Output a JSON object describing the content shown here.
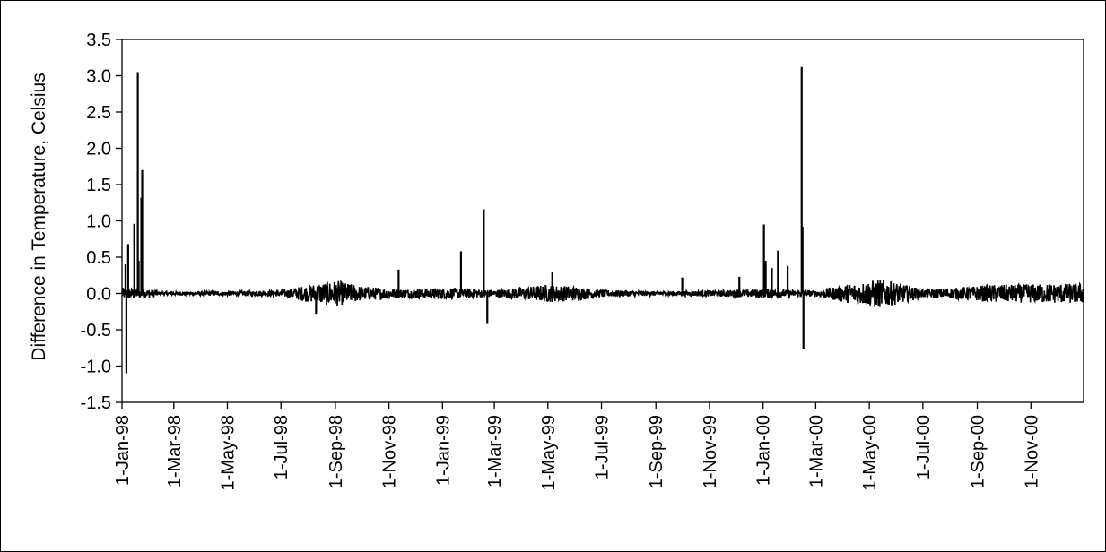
{
  "chart_data": {
    "type": "line",
    "title": "",
    "xlabel": "",
    "ylabel": "Difference in Temperature, Celsius",
    "ylim": [
      -1.5,
      3.5
    ],
    "y_ticks": [
      -1.5,
      -1.0,
      -0.5,
      0.0,
      0.5,
      1.0,
      1.5,
      2.0,
      2.5,
      3.0,
      3.5
    ],
    "y_tick_labels": [
      "-1.5",
      "-1.0",
      "-0.5",
      "0.0",
      "0.5",
      "1.0",
      "1.5",
      "2.0",
      "2.5",
      "3.0",
      "3.5"
    ],
    "xlim": [
      "1998-01-01",
      "2000-12-31"
    ],
    "x_ticks": [
      "1998-01-01",
      "1998-03-01",
      "1998-05-01",
      "1998-07-01",
      "1998-09-01",
      "1998-11-01",
      "1999-01-01",
      "1999-03-01",
      "1999-05-01",
      "1999-07-01",
      "1999-09-01",
      "1999-11-01",
      "2000-01-01",
      "2000-03-01",
      "2000-05-01",
      "2000-07-01",
      "2000-09-01",
      "2000-11-01"
    ],
    "x_tick_labels": [
      "1-Jan-98",
      "1-Mar-98",
      "1-May-98",
      "1-Jul-98",
      "1-Sep-98",
      "1-Nov-98",
      "1-Jan-99",
      "1-Mar-99",
      "1-May-99",
      "1-Jul-99",
      "1-Sep-99",
      "1-Nov-99",
      "1-Jan-00",
      "1-Mar-00",
      "1-May-00",
      "1-Jul-00",
      "1-Sep-00",
      "1-Nov-00"
    ],
    "grid": false,
    "legend": "none",
    "line_color": "#000000",
    "noise_band": [
      {
        "x": "1998-01-01",
        "amp": 0.08
      },
      {
        "x": "1998-02-10",
        "amp": 0.05
      },
      {
        "x": "1998-02-11",
        "amp": 0.02
      },
      {
        "x": "1998-04-20",
        "amp": 0.03
      },
      {
        "x": "1998-07-01",
        "amp": 0.04
      },
      {
        "x": "1998-08-01",
        "amp": 0.12
      },
      {
        "x": "1998-09-01",
        "amp": 0.18
      },
      {
        "x": "1998-10-01",
        "amp": 0.1
      },
      {
        "x": "1998-11-15",
        "amp": 0.06
      },
      {
        "x": "1999-01-01",
        "amp": 0.08
      },
      {
        "x": "1999-03-01",
        "amp": 0.05
      },
      {
        "x": "1999-05-01",
        "amp": 0.12
      },
      {
        "x": "1999-06-01",
        "amp": 0.1
      },
      {
        "x": "1999-07-01",
        "amp": 0.05
      },
      {
        "x": "1999-09-01",
        "amp": 0.03
      },
      {
        "x": "1999-11-01",
        "amp": 0.04
      },
      {
        "x": "2000-01-01",
        "amp": 0.06
      },
      {
        "x": "2000-03-01",
        "amp": 0.04
      },
      {
        "x": "2000-04-01",
        "amp": 0.12
      },
      {
        "x": "2000-05-15",
        "amp": 0.2
      },
      {
        "x": "2000-07-01",
        "amp": 0.06
      },
      {
        "x": "2000-08-01",
        "amp": 0.07
      },
      {
        "x": "2000-09-15",
        "amp": 0.12
      },
      {
        "x": "2000-12-31",
        "amp": 0.14
      }
    ],
    "spikes": [
      {
        "x": "1998-01-05",
        "y": 0.4
      },
      {
        "x": "1998-01-06",
        "y": -1.1
      },
      {
        "x": "1998-01-08",
        "y": 0.68
      },
      {
        "x": "1998-01-15",
        "y": 0.96
      },
      {
        "x": "1998-01-19",
        "y": 3.05
      },
      {
        "x": "1998-01-20",
        "y": 0.45
      },
      {
        "x": "1998-01-23",
        "y": 1.32
      },
      {
        "x": "1998-01-24",
        "y": 1.7
      },
      {
        "x": "1998-08-10",
        "y": -0.28
      },
      {
        "x": "1998-11-12",
        "y": 0.33
      },
      {
        "x": "1999-01-22",
        "y": 0.58
      },
      {
        "x": "1999-02-17",
        "y": 1.16
      },
      {
        "x": "1999-02-21",
        "y": -0.42
      },
      {
        "x": "1999-05-06",
        "y": 0.3
      },
      {
        "x": "1999-10-01",
        "y": 0.22
      },
      {
        "x": "1999-12-05",
        "y": 0.23
      },
      {
        "x": "2000-01-02",
        "y": 0.95
      },
      {
        "x": "2000-01-04",
        "y": 0.45
      },
      {
        "x": "2000-01-11",
        "y": 0.35
      },
      {
        "x": "2000-01-18",
        "y": 0.59
      },
      {
        "x": "2000-01-29",
        "y": 0.38
      },
      {
        "x": "2000-02-14",
        "y": 3.12
      },
      {
        "x": "2000-02-15",
        "y": 0.92
      },
      {
        "x": "2000-02-16",
        "y": -0.76
      }
    ]
  }
}
